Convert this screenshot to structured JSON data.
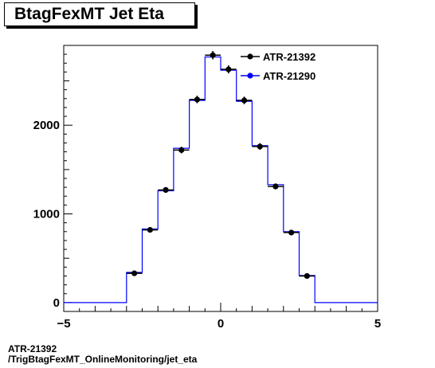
{
  "title": "BtagFexMT Jet Eta",
  "footer": {
    "line1": "ATR-21392",
    "line2": "/TrigBtagFexMT_OnlineMonitoring/jet_eta"
  },
  "chart_data": {
    "type": "histogram",
    "title": "BtagFexMT Jet Eta",
    "xlabel": "",
    "ylabel": "",
    "xlim": [
      -5,
      5
    ],
    "ylim": [
      -100,
      2900
    ],
    "xticks": [
      -5,
      0,
      5
    ],
    "yticks": [
      0,
      1000,
      2000
    ],
    "legend_position": "top-right",
    "bin_edges": [
      -3,
      -2.5,
      -2,
      -1.5,
      -1,
      -0.5,
      0,
      0.5,
      1,
      1.5,
      2,
      2.5,
      3
    ],
    "series": [
      {
        "name": "ATR-21392",
        "style": "points",
        "color": "#000000",
        "values": [
          330,
          820,
          1270,
          1720,
          2290,
          2790,
          2630,
          2280,
          1760,
          1310,
          790,
          300
        ]
      },
      {
        "name": "ATR-21290",
        "style": "step",
        "color": "#0000ff",
        "values": [
          340,
          830,
          1260,
          1740,
          2280,
          2770,
          2620,
          2270,
          1770,
          1330,
          800,
          305
        ]
      }
    ]
  }
}
